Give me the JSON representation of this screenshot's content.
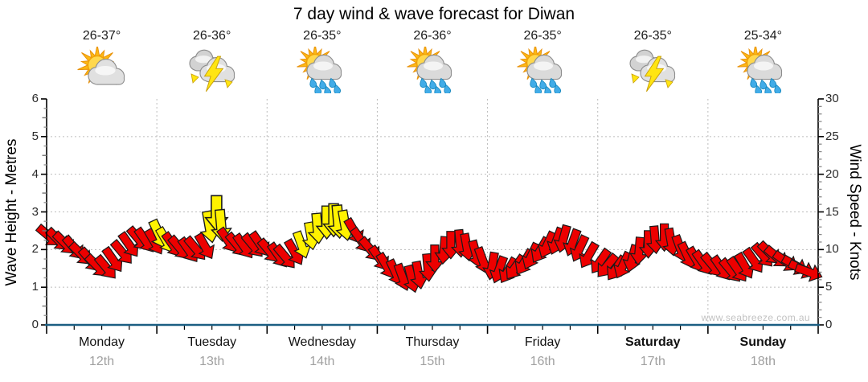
{
  "chart_data": {
    "type": "scatter",
    "subtype": "wind-direction-arrow-forecast",
    "title": "7 day wind & wave forecast for Diwan",
    "watermark": "www.seabreeze.com.au",
    "left_axis": {
      "label": "Wave Height - Metres",
      "min": 0,
      "max": 6,
      "major_ticks": [
        0,
        1,
        2,
        3,
        4,
        5,
        6
      ]
    },
    "right_axis": {
      "label": "Wind Speed - Knots",
      "min": 0,
      "max": 30,
      "major_ticks": [
        0,
        5,
        10,
        15,
        20,
        25,
        30
      ]
    },
    "grid": {
      "horizontal_metres": [
        1,
        2,
        3,
        4,
        5
      ],
      "vertical_day_boundaries": true
    },
    "days": [
      {
        "name": "Monday",
        "date": "12th",
        "temp_range": "26-37°",
        "icon": "sun-cloud",
        "weekend": false
      },
      {
        "name": "Tuesday",
        "date": "13th",
        "temp_range": "26-36°",
        "icon": "storm",
        "weekend": false
      },
      {
        "name": "Wednesday",
        "date": "14th",
        "temp_range": "26-35°",
        "icon": "sun-cloud-rain",
        "weekend": false
      },
      {
        "name": "Thursday",
        "date": "15th",
        "temp_range": "26-36°",
        "icon": "sun-cloud-rain",
        "weekend": false
      },
      {
        "name": "Friday",
        "date": "16th",
        "temp_range": "26-35°",
        "icon": "sun-cloud-rain",
        "weekend": false
      },
      {
        "name": "Saturday",
        "date": "17th",
        "temp_range": "26-35°",
        "icon": "storm",
        "weekend": true
      },
      {
        "name": "Sunday",
        "date": "18th",
        "temp_range": "25-34°",
        "icon": "sun-cloud-rain",
        "weekend": true
      }
    ],
    "wind_arrows": {
      "units": {
        "t": "hours from Monday 00:00 (0-168)",
        "speed": "knots",
        "dir": "rotation deg, 0 = arrow points down, negative = down-right",
        "color": "r=red, y=yellow",
        "scale": "optional arrow size factor"
      },
      "points": [
        [
          0.5,
          11.8,
          -50,
          "r"
        ],
        [
          2.5,
          11.3,
          -45,
          "r"
        ],
        [
          4,
          10.8,
          -45,
          "r"
        ],
        [
          6,
          10.2,
          -40,
          "r"
        ],
        [
          7.5,
          9.4,
          -45,
          "r"
        ],
        [
          9.5,
          8.6,
          -40,
          "r"
        ],
        [
          11,
          7.8,
          -45,
          "r"
        ],
        [
          13,
          7.6,
          -40,
          "r"
        ],
        [
          14.5,
          8.6,
          -35,
          "r"
        ],
        [
          16.5,
          9.6,
          -40,
          "r"
        ],
        [
          18,
          10.6,
          -35,
          "r"
        ],
        [
          20,
          11.4,
          -40,
          "r"
        ],
        [
          21.5,
          11.2,
          -35,
          "r"
        ],
        [
          23.5,
          11.0,
          -30,
          "r"
        ],
        [
          24.5,
          12.0,
          -25,
          "y",
          1.1
        ],
        [
          26,
          11.2,
          -30,
          "y"
        ],
        [
          27.5,
          10.6,
          -35,
          "r"
        ],
        [
          29,
          10.2,
          -40,
          "r"
        ],
        [
          31,
          9.9,
          -35,
          "r"
        ],
        [
          32.5,
          10.1,
          -40,
          "r"
        ],
        [
          34.5,
          10.4,
          -30,
          "r"
        ],
        [
          35.5,
          13.0,
          -10,
          "y",
          1.15
        ],
        [
          37,
          14.8,
          0,
          "y",
          1.3
        ],
        [
          38,
          13.2,
          -5,
          "y",
          1.15
        ],
        [
          39.5,
          11.2,
          -35,
          "r"
        ],
        [
          41.5,
          10.6,
          -40,
          "r"
        ],
        [
          43,
          10.4,
          -35,
          "r"
        ],
        [
          45,
          10.5,
          -40,
          "r"
        ],
        [
          46.5,
          10.7,
          -35,
          "r"
        ],
        [
          48.5,
          9.8,
          -40,
          "r"
        ],
        [
          50.5,
          9.2,
          -35,
          "r"
        ],
        [
          52,
          9.0,
          -40,
          "r"
        ],
        [
          54,
          9.6,
          -30,
          "r"
        ],
        [
          55.5,
          10.6,
          -20,
          "y"
        ],
        [
          57.5,
          11.8,
          -10,
          "y"
        ],
        [
          59,
          12.8,
          -5,
          "y",
          1.1
        ],
        [
          61,
          13.6,
          0,
          "y",
          1.2
        ],
        [
          62.5,
          13.9,
          0,
          "y",
          1.2
        ],
        [
          63.5,
          13.7,
          -5,
          "y",
          1.2
        ],
        [
          65,
          13.2,
          -10,
          "y",
          1.1
        ],
        [
          67,
          12.4,
          -30,
          "r"
        ],
        [
          68.5,
          11.2,
          -35,
          "r"
        ],
        [
          70.5,
          10.0,
          -40,
          "r"
        ],
        [
          72.5,
          8.8,
          -35,
          "r"
        ],
        [
          74,
          7.8,
          -30,
          "r"
        ],
        [
          76,
          6.9,
          -25,
          "r"
        ],
        [
          77.5,
          6.3,
          -20,
          "r"
        ],
        [
          79.5,
          6.1,
          -15,
          "r"
        ],
        [
          81,
          6.6,
          -10,
          "r"
        ],
        [
          83,
          7.6,
          -5,
          "r"
        ],
        [
          84.5,
          8.8,
          0,
          "r"
        ],
        [
          86.5,
          9.9,
          5,
          "r"
        ],
        [
          88,
          10.6,
          0,
          "r"
        ],
        [
          90,
          10.8,
          -5,
          "r"
        ],
        [
          91.5,
          10.3,
          -10,
          "r"
        ],
        [
          93.5,
          9.4,
          -15,
          "r"
        ],
        [
          95,
          8.5,
          -20,
          "r"
        ],
        [
          97,
          7.8,
          10,
          "r"
        ],
        [
          98.5,
          7.3,
          20,
          "r"
        ],
        [
          100.5,
          7.2,
          30,
          "r"
        ],
        [
          102,
          7.6,
          35,
          "r"
        ],
        [
          104,
          8.3,
          30,
          "r"
        ],
        [
          105.5,
          9.1,
          25,
          "r"
        ],
        [
          107.5,
          9.9,
          30,
          "r"
        ],
        [
          109,
          10.6,
          25,
          "r"
        ],
        [
          111,
          11.1,
          20,
          "r"
        ],
        [
          112.5,
          11.4,
          15,
          "r"
        ],
        [
          114.5,
          10.9,
          20,
          "r"
        ],
        [
          116,
          10.1,
          25,
          "r"
        ],
        [
          118,
          9.2,
          30,
          "r"
        ],
        [
          120.5,
          8.4,
          35,
          "r"
        ],
        [
          122,
          7.8,
          40,
          "r"
        ],
        [
          124,
          7.5,
          35,
          "r"
        ],
        [
          125.5,
          7.9,
          25,
          "r"
        ],
        [
          127.5,
          8.8,
          15,
          "r"
        ],
        [
          129,
          9.8,
          5,
          "r"
        ],
        [
          131,
          10.7,
          0,
          "r"
        ],
        [
          132.5,
          11.3,
          -5,
          "r"
        ],
        [
          134.5,
          11.6,
          0,
          "r"
        ],
        [
          136,
          11.0,
          -10,
          "r"
        ],
        [
          138,
          10.1,
          -20,
          "r"
        ],
        [
          139.5,
          9.2,
          -25,
          "r"
        ],
        [
          141.5,
          8.6,
          -30,
          "r"
        ],
        [
          143,
          8.2,
          -35,
          "r"
        ],
        [
          145,
          7.9,
          -40,
          "r"
        ],
        [
          147,
          7.5,
          -35,
          "r"
        ],
        [
          149,
          7.2,
          -40,
          "r"
        ],
        [
          150.5,
          7.3,
          -35,
          "r"
        ],
        [
          152,
          7.8,
          -30,
          "r"
        ],
        [
          154,
          8.5,
          -35,
          "r"
        ],
        [
          156,
          9.2,
          -40,
          "r"
        ],
        [
          157.5,
          9.5,
          -45,
          "r"
        ],
        [
          159,
          9.0,
          -50,
          "r"
        ],
        [
          161,
          8.4,
          -55,
          "r"
        ],
        [
          163,
          7.9,
          -60,
          "r"
        ],
        [
          164.5,
          7.4,
          -65,
          "r"
        ],
        [
          166,
          7.0,
          -70,
          "r"
        ]
      ]
    },
    "colors": {
      "arrow_red": "#ED0000",
      "arrow_yellow": "#FFF200",
      "arrow_outline": "#1a1a1a",
      "x_axis_line": "#1b5e82",
      "grid_line": "#bcbcbc",
      "date_text": "#a0a0a0",
      "watermark_text": "#c2c2c2"
    }
  }
}
